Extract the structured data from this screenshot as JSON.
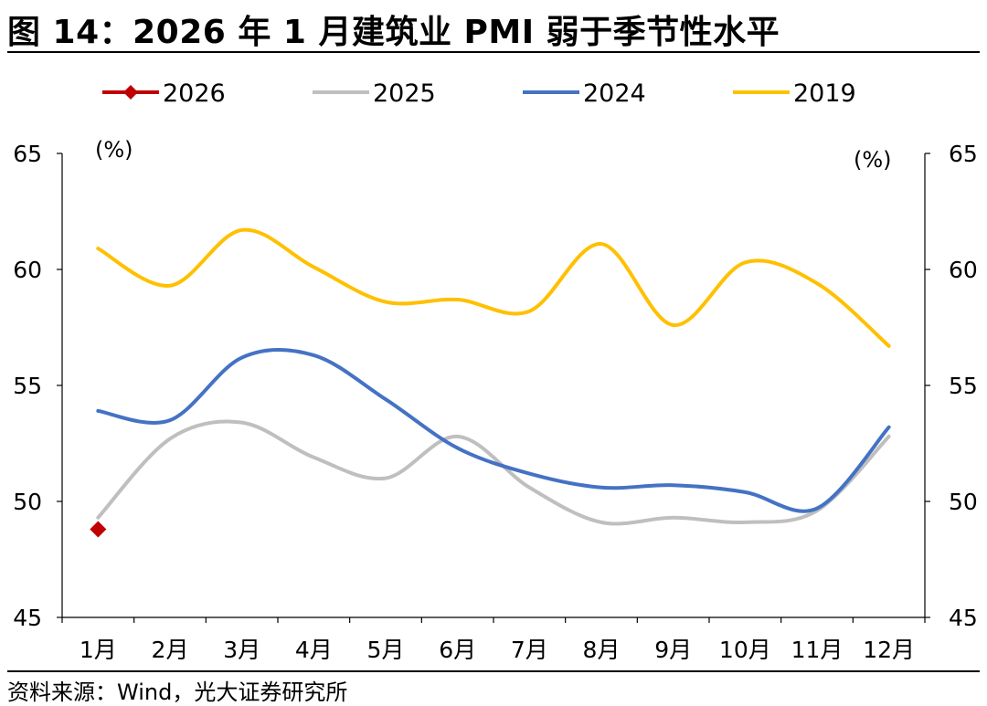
{
  "title": "图 14：2026 年 1 月建筑业 PMI 弱于季节性水平",
  "source": "资料来源：Wind，光大证券研究所",
  "chart_data": {
    "type": "line",
    "categories": [
      "1月",
      "2月",
      "3月",
      "4月",
      "5月",
      "6月",
      "7月",
      "8月",
      "9月",
      "10月",
      "11月",
      "12月"
    ],
    "y_unit_left": "(%)",
    "y_unit_right": "(%)",
    "ylim": [
      45,
      65
    ],
    "yticks": [
      45,
      50,
      55,
      60,
      65
    ],
    "legend_position": "top",
    "series": [
      {
        "name": "2026",
        "color": "#c00000",
        "marker": "diamond",
        "values": [
          48.8,
          null,
          null,
          null,
          null,
          null,
          null,
          null,
          null,
          null,
          null,
          null
        ]
      },
      {
        "name": "2025",
        "color": "#bfbfbf",
        "marker": "none",
        "values": [
          49.3,
          52.7,
          53.4,
          51.9,
          51.0,
          52.8,
          50.6,
          49.1,
          49.3,
          49.1,
          49.6,
          52.8
        ]
      },
      {
        "name": "2024",
        "color": "#4472c4",
        "marker": "none",
        "values": [
          53.9,
          53.5,
          56.2,
          56.3,
          54.4,
          52.3,
          51.2,
          50.6,
          50.7,
          50.4,
          49.7,
          53.2
        ]
      },
      {
        "name": "2019",
        "color": "#ffc000",
        "marker": "none",
        "values": [
          60.9,
          59.3,
          61.7,
          60.1,
          58.6,
          58.7,
          58.2,
          61.1,
          57.6,
          60.3,
          59.4,
          56.7
        ]
      }
    ]
  }
}
